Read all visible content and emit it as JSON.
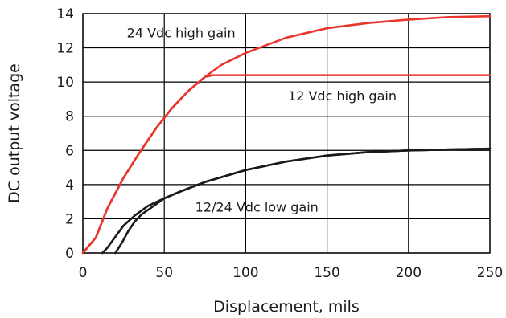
{
  "chart_data": {
    "type": "line",
    "xlabel": "Displacement, mils",
    "ylabel": "DC output voltage",
    "xlim": [
      0,
      250
    ],
    "ylim": [
      0,
      14
    ],
    "x_ticks": [
      0,
      50,
      100,
      150,
      200,
      250
    ],
    "y_ticks": [
      0,
      2,
      4,
      6,
      8,
      10,
      12,
      14
    ],
    "grid": true,
    "series": [
      {
        "color": "#e8362d",
        "points": [
          [
            0,
            0
          ],
          [
            8,
            0.9
          ],
          [
            15,
            2.6
          ],
          [
            25,
            4.4
          ],
          [
            35,
            5.9
          ],
          [
            45,
            7.3
          ],
          [
            55,
            8.5
          ],
          [
            65,
            9.5
          ],
          [
            75,
            10.3
          ],
          [
            80,
            10.4
          ],
          [
            90,
            10.4
          ],
          [
            125,
            10.4
          ],
          [
            175,
            10.4
          ],
          [
            225,
            10.4
          ],
          [
            250,
            10.4
          ]
        ]
      },
      {
        "color": "#e8362d",
        "points": [
          [
            0,
            0
          ],
          [
            8,
            0.9
          ],
          [
            15,
            2.6
          ],
          [
            25,
            4.4
          ],
          [
            35,
            5.9
          ],
          [
            45,
            7.3
          ],
          [
            55,
            8.5
          ],
          [
            65,
            9.5
          ],
          [
            75,
            10.3
          ],
          [
            85,
            11.0
          ],
          [
            100,
            11.7
          ],
          [
            125,
            12.6
          ],
          [
            150,
            13.15
          ],
          [
            175,
            13.45
          ],
          [
            200,
            13.65
          ],
          [
            225,
            13.8
          ],
          [
            250,
            13.85
          ]
        ]
      },
      {
        "color": "#1a1a1a",
        "points": [
          [
            12,
            0
          ],
          [
            15,
            0.3
          ],
          [
            20,
            0.95
          ],
          [
            25,
            1.6
          ],
          [
            32,
            2.2
          ],
          [
            40,
            2.75
          ],
          [
            50,
            3.2
          ],
          [
            60,
            3.6
          ],
          [
            75,
            4.15
          ],
          [
            100,
            4.85
          ],
          [
            125,
            5.35
          ],
          [
            150,
            5.7
          ],
          [
            175,
            5.9
          ],
          [
            200,
            6.0
          ],
          [
            225,
            6.05
          ],
          [
            250,
            6.1
          ]
        ]
      },
      {
        "color": "#1a1a1a",
        "points": [
          [
            20,
            0
          ],
          [
            24,
            0.6
          ],
          [
            28,
            1.3
          ],
          [
            32,
            1.85
          ],
          [
            36,
            2.25
          ],
          [
            42,
            2.65
          ],
          [
            50,
            3.2
          ],
          [
            60,
            3.6
          ],
          [
            75,
            4.15
          ],
          [
            100,
            4.85
          ],
          [
            125,
            5.35
          ],
          [
            150,
            5.7
          ],
          [
            175,
            5.9
          ],
          [
            200,
            6.0
          ],
          [
            225,
            6.05
          ],
          [
            250,
            6.1
          ]
        ]
      }
    ],
    "annotations": [
      {
        "text": "24 Vdc high gain",
        "x": 27,
        "y": 12.9
      },
      {
        "text": "12 Vdc high gain",
        "x": 126,
        "y": 9.2
      },
      {
        "text": "12/24 Vdc low gain",
        "x": 69,
        "y": 2.7
      }
    ]
  }
}
